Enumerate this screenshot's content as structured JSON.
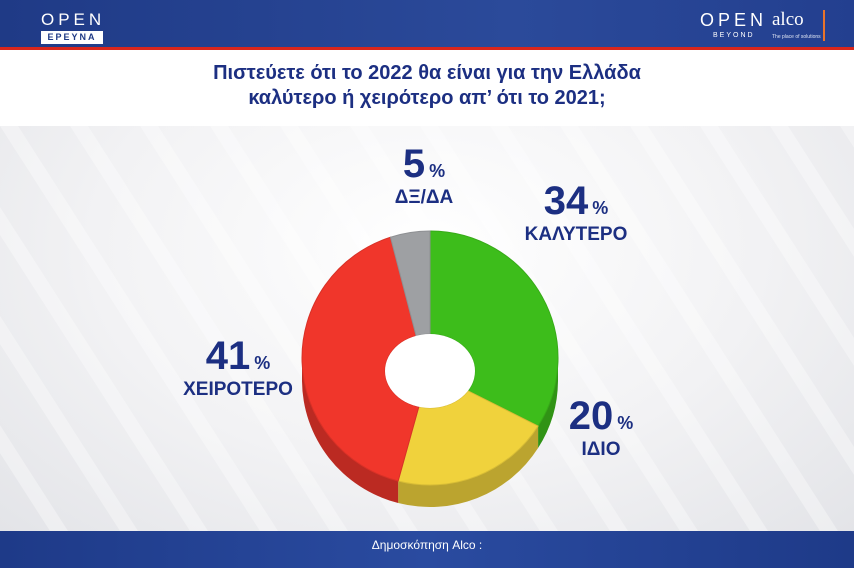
{
  "header": {
    "logo_left_main": "OPEN",
    "logo_left_sub": "ΕΡΕΥΝΑ",
    "logo_right_main": "OPEN",
    "logo_right_sub": "BEYOND",
    "partner_logo": "alco",
    "partner_tagline": "The place of solutions"
  },
  "question": {
    "line1": "Πιστεύετε ότι το 2022 θα είναι για την Ελλάδα",
    "line2": "καλύτερο ή χειρότερο απ’ ότι το 2021;"
  },
  "footer": {
    "source": "Δημοσκόπηση Alco :"
  },
  "colors": {
    "brand_blue": "#1c2f82",
    "better": "#3dbd1b",
    "same": "#f0d23c",
    "worse": "#f0362b",
    "dk_na": "#9ea0a3"
  },
  "chart_data": {
    "type": "pie",
    "donut": true,
    "slices": [
      {
        "label": "ΚΑΛΥΤΕΡΟ",
        "value": 34,
        "unit": "%",
        "color": "#3dbd1b"
      },
      {
        "label": "ΙΔΙΟ",
        "value": 20,
        "unit": "%",
        "color": "#f0d23c"
      },
      {
        "label": "ΧΕΙΡΟΤΕΡΟ",
        "value": 41,
        "unit": "%",
        "color": "#f0362b"
      },
      {
        "label": "ΔΞ/ΔΑ",
        "value": 5,
        "unit": "%",
        "color": "#9ea0a3"
      }
    ],
    "title": "Πιστεύετε ότι το 2022 θα είναι για την Ελλάδα καλύτερο ή χειρότερο απ’ ότι το 2021;"
  }
}
